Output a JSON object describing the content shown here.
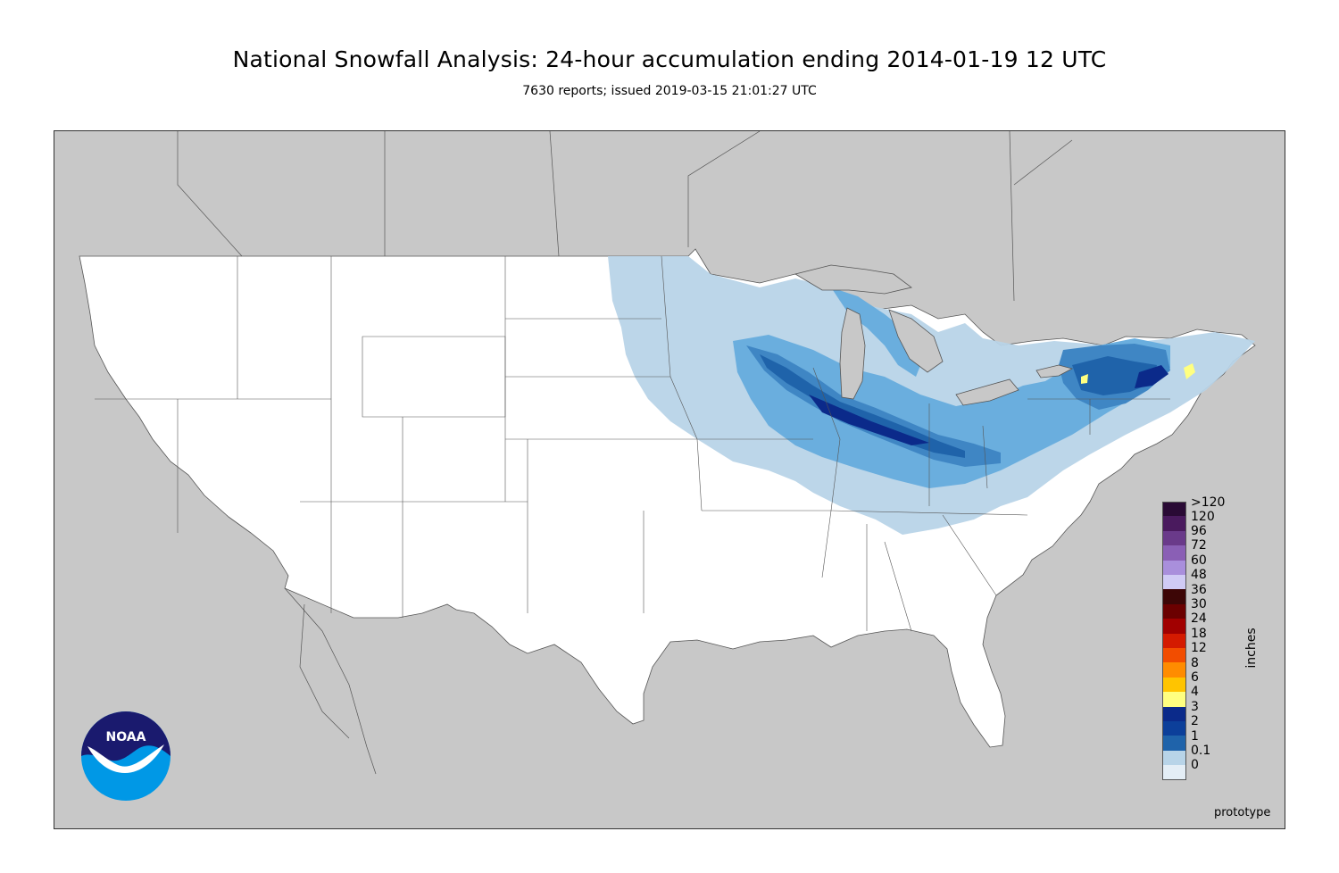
{
  "title": "National Snowfall Analysis: 24-hour accumulation ending 2014-01-19 12 UTC",
  "subtitle": "7630 reports; issued 2019-03-15 21:01:27 UTC",
  "map": {
    "colors": {
      "ocean_and_foreign": "#c8c8c8",
      "us_land": "#ffffff",
      "border": "#555555"
    }
  },
  "legend": {
    "units": "inches",
    "bins": [
      {
        "label": ">120",
        "color": "#2a0a35"
      },
      {
        "label": "120",
        "color": "#4a1a5e"
      },
      {
        "label": "96",
        "color": "#6a3a8a"
      },
      {
        "label": "72",
        "color": "#8a5fb5"
      },
      {
        "label": "60",
        "color": "#a98fdc"
      },
      {
        "label": "48",
        "color": "#d0cbf5"
      },
      {
        "label": "36",
        "color": "#3d0606"
      },
      {
        "label": "30",
        "color": "#6b0000"
      },
      {
        "label": "24",
        "color": "#a10000"
      },
      {
        "label": "18",
        "color": "#d41a00"
      },
      {
        "label": "12",
        "color": "#f24d00"
      },
      {
        "label": "8",
        "color": "#ff8c00"
      },
      {
        "label": "6",
        "color": "#ffc400"
      },
      {
        "label": "4",
        "color": "#ffff80"
      },
      {
        "label": "3",
        "color": "#0b2a8a"
      },
      {
        "label": "2",
        "color": "#0c3f9a"
      },
      {
        "label": "1",
        "color": "#1f63aa"
      },
      {
        "label": "0.1",
        "color": "#3f86c4"
      },
      {
        "label": "0",
        "color": "#6aaede"
      }
    ],
    "extra_colors": [
      "#b8d4e8",
      "#e4eef6",
      "#ffffff"
    ]
  },
  "footer": {
    "prototype_label": "prototype"
  },
  "logo": {
    "text": "NOAA"
  }
}
